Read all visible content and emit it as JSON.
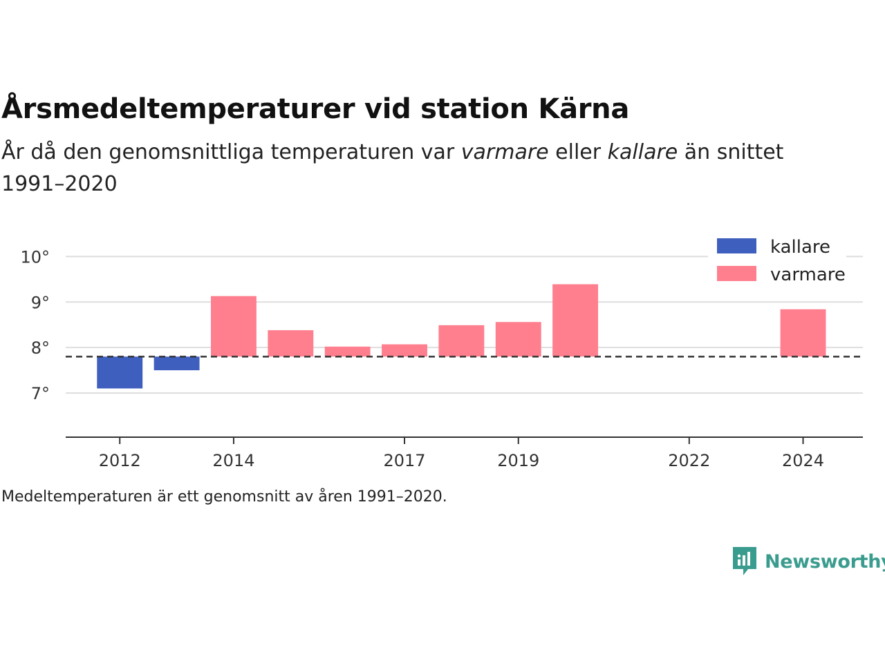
{
  "header": {
    "title": "Årsmedeltemperaturer vid station Kärna",
    "subtitle_pre": "År då den genomsnittliga temperaturen var ",
    "subtitle_em1": "varmare",
    "subtitle_mid": " eller ",
    "subtitle_em2": "kallare",
    "subtitle_post": " än snittet 1991–2020"
  },
  "footer": {
    "note": "Medeltemperaturen är ett genomsnitt av åren 1991–2020.",
    "brand": "Newsworthy"
  },
  "colors": {
    "kallare": "#3f5fbf",
    "varmare": "#ff7f8f",
    "baseline": "#333333",
    "grid": "#dddddd",
    "brand": "#3a9c8e"
  },
  "chart_data": {
    "type": "bar",
    "baseline": 7.8,
    "x": [
      2012,
      2013,
      2014,
      2015,
      2016,
      2017,
      2018,
      2019,
      2020,
      2021,
      2022,
      2023,
      2024
    ],
    "values": [
      7.1,
      7.5,
      9.13,
      8.38,
      8.02,
      8.07,
      8.49,
      8.56,
      9.39,
      null,
      null,
      null,
      8.84
    ],
    "xticks": [
      2012,
      2014,
      2017,
      2019,
      2022,
      2024
    ],
    "yticks": [
      {
        "value": 7,
        "label": "7°"
      },
      {
        "value": 8,
        "label": "8°"
      },
      {
        "value": 9,
        "label": "9°"
      },
      {
        "value": 10,
        "label": "10°"
      }
    ],
    "ylim": [
      6.03,
      10.4
    ],
    "xlim": [
      2011.05,
      2025.05
    ],
    "legend": {
      "position": "top-right",
      "items": [
        {
          "key": "kallare",
          "label": "kallare"
        },
        {
          "key": "varmare",
          "label": "varmare"
        }
      ]
    },
    "grid": true
  }
}
